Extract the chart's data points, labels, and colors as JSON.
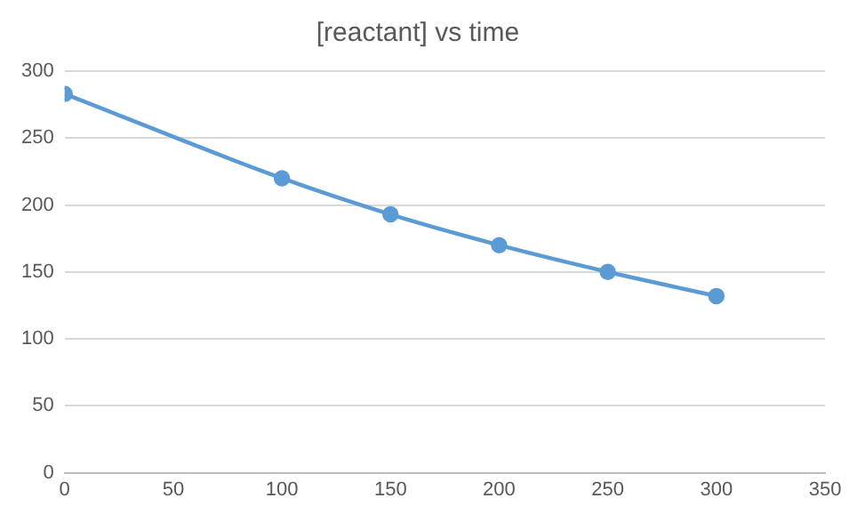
{
  "chart_data": {
    "type": "line",
    "title": "[reactant] vs time",
    "x": [
      0,
      100,
      150,
      200,
      250,
      300
    ],
    "series": [
      {
        "color": "#5b9bd5",
        "values": [
          283,
          220,
          193,
          170,
          150,
          132
        ]
      }
    ],
    "xlim": [
      0,
      350
    ],
    "xticks": [
      0,
      50,
      100,
      150,
      200,
      250,
      300,
      350
    ],
    "ylim": [
      0,
      300
    ],
    "yticks": [
      0,
      50,
      100,
      150,
      200,
      250,
      300
    ],
    "grid": "y",
    "legend": false,
    "marker": "circle",
    "line_style": "solid"
  }
}
